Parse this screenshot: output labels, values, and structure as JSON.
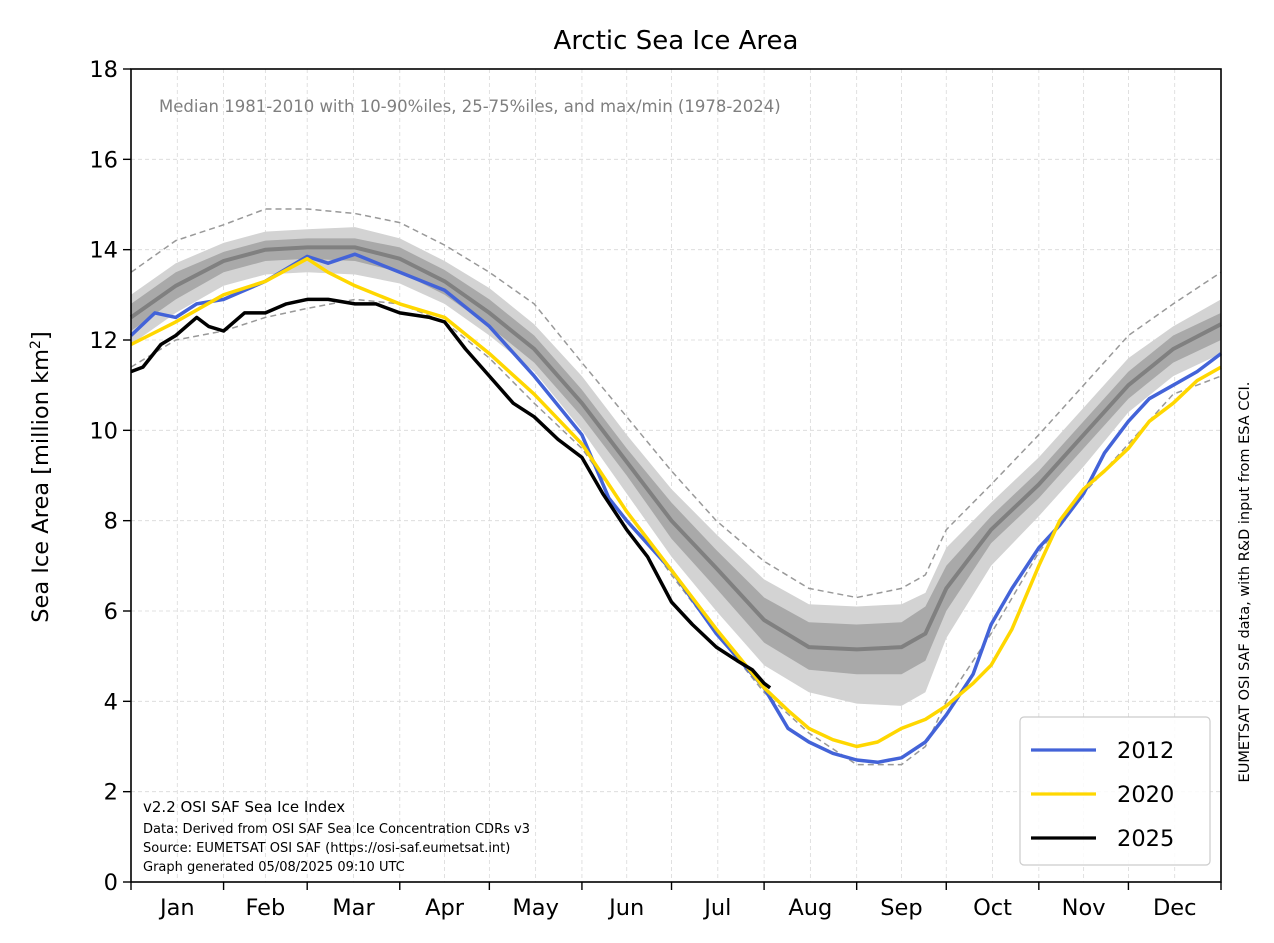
{
  "chart_data": {
    "type": "line",
    "title": "Arctic Sea Ice Area",
    "subtitle": "Median 1981-2010 with 10-90%iles, 25-75%iles, and max/min (1978-2024)",
    "ylabel_main": "Sea Ice Area [million km",
    "ylabel_sup": "2",
    "ylabel_end": "]",
    "side_label": "EUMETSAT OSI SAF data, with R&D input from ESA CCI.",
    "footnote": [
      "v2.2 OSI SAF Sea Ice Index",
      "Data: Derived from OSI SAF Sea Ice Concentration CDRs v3",
      "Source: EUMETSAT OSI SAF (https://osi-saf.eumetsat.int)",
      "Graph generated 05/08/2025 09:10 UTC"
    ],
    "xlim": [
      0,
      365
    ],
    "ylim": [
      0,
      18
    ],
    "yticks": [
      0,
      2,
      4,
      6,
      8,
      10,
      12,
      14,
      16,
      18
    ],
    "month_ticks": [
      0,
      31,
      59,
      90,
      120,
      151,
      181,
      212,
      243,
      273,
      304,
      334,
      365
    ],
    "months": [
      "Jan",
      "Feb",
      "Mar",
      "Apr",
      "May",
      "Jun",
      "Jul",
      "Aug",
      "Sep",
      "Oct",
      "Nov",
      "Dec"
    ],
    "grid": true,
    "legend_position": "bottom-right",
    "colors": {
      "median": "#808080",
      "iqr": "#a9a9a9",
      "p10_90": "#d3d3d3",
      "maxmin": "#999999",
      "y2012": "#4363d8",
      "y2020": "#ffd700",
      "y2025": "#000000"
    },
    "climatology": {
      "x": [
        0,
        15,
        31,
        45,
        59,
        75,
        90,
        105,
        120,
        135,
        151,
        166,
        181,
        196,
        212,
        227,
        243,
        258,
        266,
        273,
        288,
        304,
        319,
        334,
        349,
        365
      ],
      "median": [
        12.5,
        13.2,
        13.75,
        14.0,
        14.05,
        14.05,
        13.8,
        13.3,
        12.6,
        11.8,
        10.6,
        9.3,
        8.0,
        6.95,
        5.8,
        5.2,
        5.15,
        5.2,
        5.5,
        6.5,
        7.8,
        8.8,
        9.9,
        11.0,
        11.8,
        12.35
      ],
      "p25": [
        12.2,
        12.9,
        13.5,
        13.75,
        13.8,
        13.75,
        13.5,
        13.0,
        12.3,
        11.5,
        10.3,
        9.0,
        7.6,
        6.5,
        5.3,
        4.7,
        4.6,
        4.6,
        4.9,
        6.0,
        7.5,
        8.5,
        9.6,
        10.7,
        11.5,
        12.0
      ],
      "p75": [
        12.8,
        13.5,
        13.95,
        14.2,
        14.25,
        14.25,
        14.05,
        13.55,
        12.9,
        12.1,
        10.9,
        9.6,
        8.4,
        7.35,
        6.3,
        5.75,
        5.7,
        5.75,
        6.1,
        7.0,
        8.1,
        9.1,
        10.2,
        11.3,
        12.1,
        12.6
      ],
      "p10": [
        11.9,
        12.6,
        13.2,
        13.45,
        13.5,
        13.45,
        13.25,
        12.8,
        12.1,
        11.3,
        10.0,
        8.6,
        7.2,
        6.0,
        4.8,
        4.2,
        3.95,
        3.9,
        4.2,
        5.4,
        7.0,
        8.1,
        9.2,
        10.4,
        11.2,
        11.7
      ],
      "p90": [
        13.0,
        13.7,
        14.15,
        14.4,
        14.45,
        14.5,
        14.25,
        13.75,
        13.15,
        12.35,
        11.2,
        9.9,
        8.7,
        7.7,
        6.7,
        6.15,
        6.1,
        6.15,
        6.4,
        7.4,
        8.4,
        9.4,
        10.5,
        11.6,
        12.3,
        12.9
      ],
      "max": [
        13.5,
        14.2,
        14.55,
        14.9,
        14.9,
        14.8,
        14.6,
        14.1,
        13.5,
        12.8,
        11.5,
        10.3,
        9.1,
        8.0,
        7.1,
        6.5,
        6.3,
        6.5,
        6.8,
        7.8,
        8.8,
        9.9,
        11.0,
        12.1,
        12.8,
        13.5
      ],
      "min": [
        11.4,
        12.0,
        12.2,
        12.5,
        12.7,
        12.9,
        12.8,
        12.4,
        11.6,
        10.6,
        9.6,
        8.2,
        6.8,
        5.5,
        4.2,
        3.3,
        2.6,
        2.6,
        3.0,
        4.0,
        5.5,
        7.3,
        8.6,
        9.7,
        10.8,
        11.2
      ]
    },
    "series": [
      {
        "name": "2012",
        "x": [
          0,
          8,
          15,
          22,
          31,
          45,
          59,
          66,
          75,
          90,
          105,
          120,
          135,
          151,
          160,
          166,
          181,
          196,
          212,
          220,
          227,
          235,
          243,
          250,
          258,
          266,
          273,
          282,
          288,
          295,
          304,
          311,
          319,
          326,
          334,
          341,
          349,
          357,
          365
        ],
        "y": [
          12.1,
          12.6,
          12.5,
          12.8,
          12.9,
          13.3,
          13.85,
          13.7,
          13.9,
          13.5,
          13.1,
          12.3,
          11.2,
          9.9,
          8.5,
          8.0,
          6.9,
          5.5,
          4.3,
          3.4,
          3.1,
          2.85,
          2.7,
          2.65,
          2.75,
          3.1,
          3.7,
          4.6,
          5.7,
          6.5,
          7.4,
          7.9,
          8.6,
          9.5,
          10.2,
          10.7,
          11.0,
          11.3,
          11.7
        ]
      },
      {
        "name": "2020",
        "x": [
          0,
          15,
          31,
          45,
          59,
          66,
          75,
          90,
          105,
          120,
          135,
          151,
          166,
          181,
          196,
          212,
          220,
          227,
          235,
          243,
          250,
          258,
          266,
          273,
          282,
          288,
          295,
          304,
          311,
          319,
          326,
          334,
          341,
          349,
          357,
          365
        ],
        "y": [
          11.9,
          12.4,
          13.0,
          13.3,
          13.8,
          13.5,
          13.2,
          12.8,
          12.5,
          11.7,
          10.8,
          9.7,
          8.2,
          6.9,
          5.6,
          4.3,
          3.8,
          3.4,
          3.15,
          3.0,
          3.1,
          3.4,
          3.6,
          3.9,
          4.4,
          4.8,
          5.6,
          7.0,
          8.0,
          8.7,
          9.1,
          9.6,
          10.2,
          10.6,
          11.1,
          11.4
        ]
      },
      {
        "name": "2025",
        "x": [
          0,
          4,
          10,
          15,
          22,
          26,
          31,
          38,
          45,
          52,
          59,
          66,
          75,
          82,
          90,
          100,
          105,
          112,
          120,
          128,
          135,
          143,
          151,
          158,
          166,
          173,
          181,
          188,
          196,
          203,
          208,
          212,
          214
        ],
        "y": [
          11.3,
          11.4,
          11.9,
          12.1,
          12.5,
          12.3,
          12.2,
          12.6,
          12.6,
          12.8,
          12.9,
          12.9,
          12.8,
          12.8,
          12.6,
          12.5,
          12.4,
          11.8,
          11.2,
          10.6,
          10.3,
          9.8,
          9.4,
          8.6,
          7.8,
          7.2,
          6.2,
          5.7,
          5.2,
          4.9,
          4.7,
          4.4,
          4.3
        ]
      }
    ]
  }
}
